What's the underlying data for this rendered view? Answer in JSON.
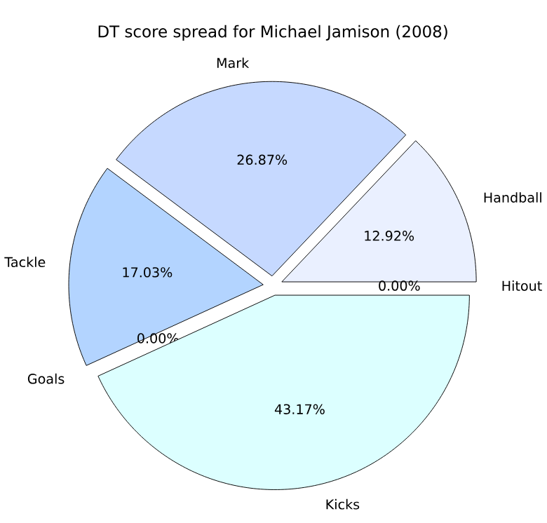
{
  "chart_data": {
    "type": "pie",
    "title": "DT score spread for Michael Jamison (2008)",
    "categories": [
      "Handball",
      "Mark",
      "Tackle",
      "Goals",
      "Kicks",
      "Hitout"
    ],
    "values": [
      12.92,
      26.87,
      17.03,
      0.0,
      43.17,
      0.0
    ],
    "value_labels": [
      "12.92%",
      "26.87%",
      "17.03%",
      "0.00%",
      "43.17%",
      "0.00%"
    ],
    "colors": [
      "#eaf0ff",
      "#c6d9ff",
      "#b3d4ff",
      "#c0e0ff",
      "#dcffff",
      "#e0e8ff"
    ]
  }
}
